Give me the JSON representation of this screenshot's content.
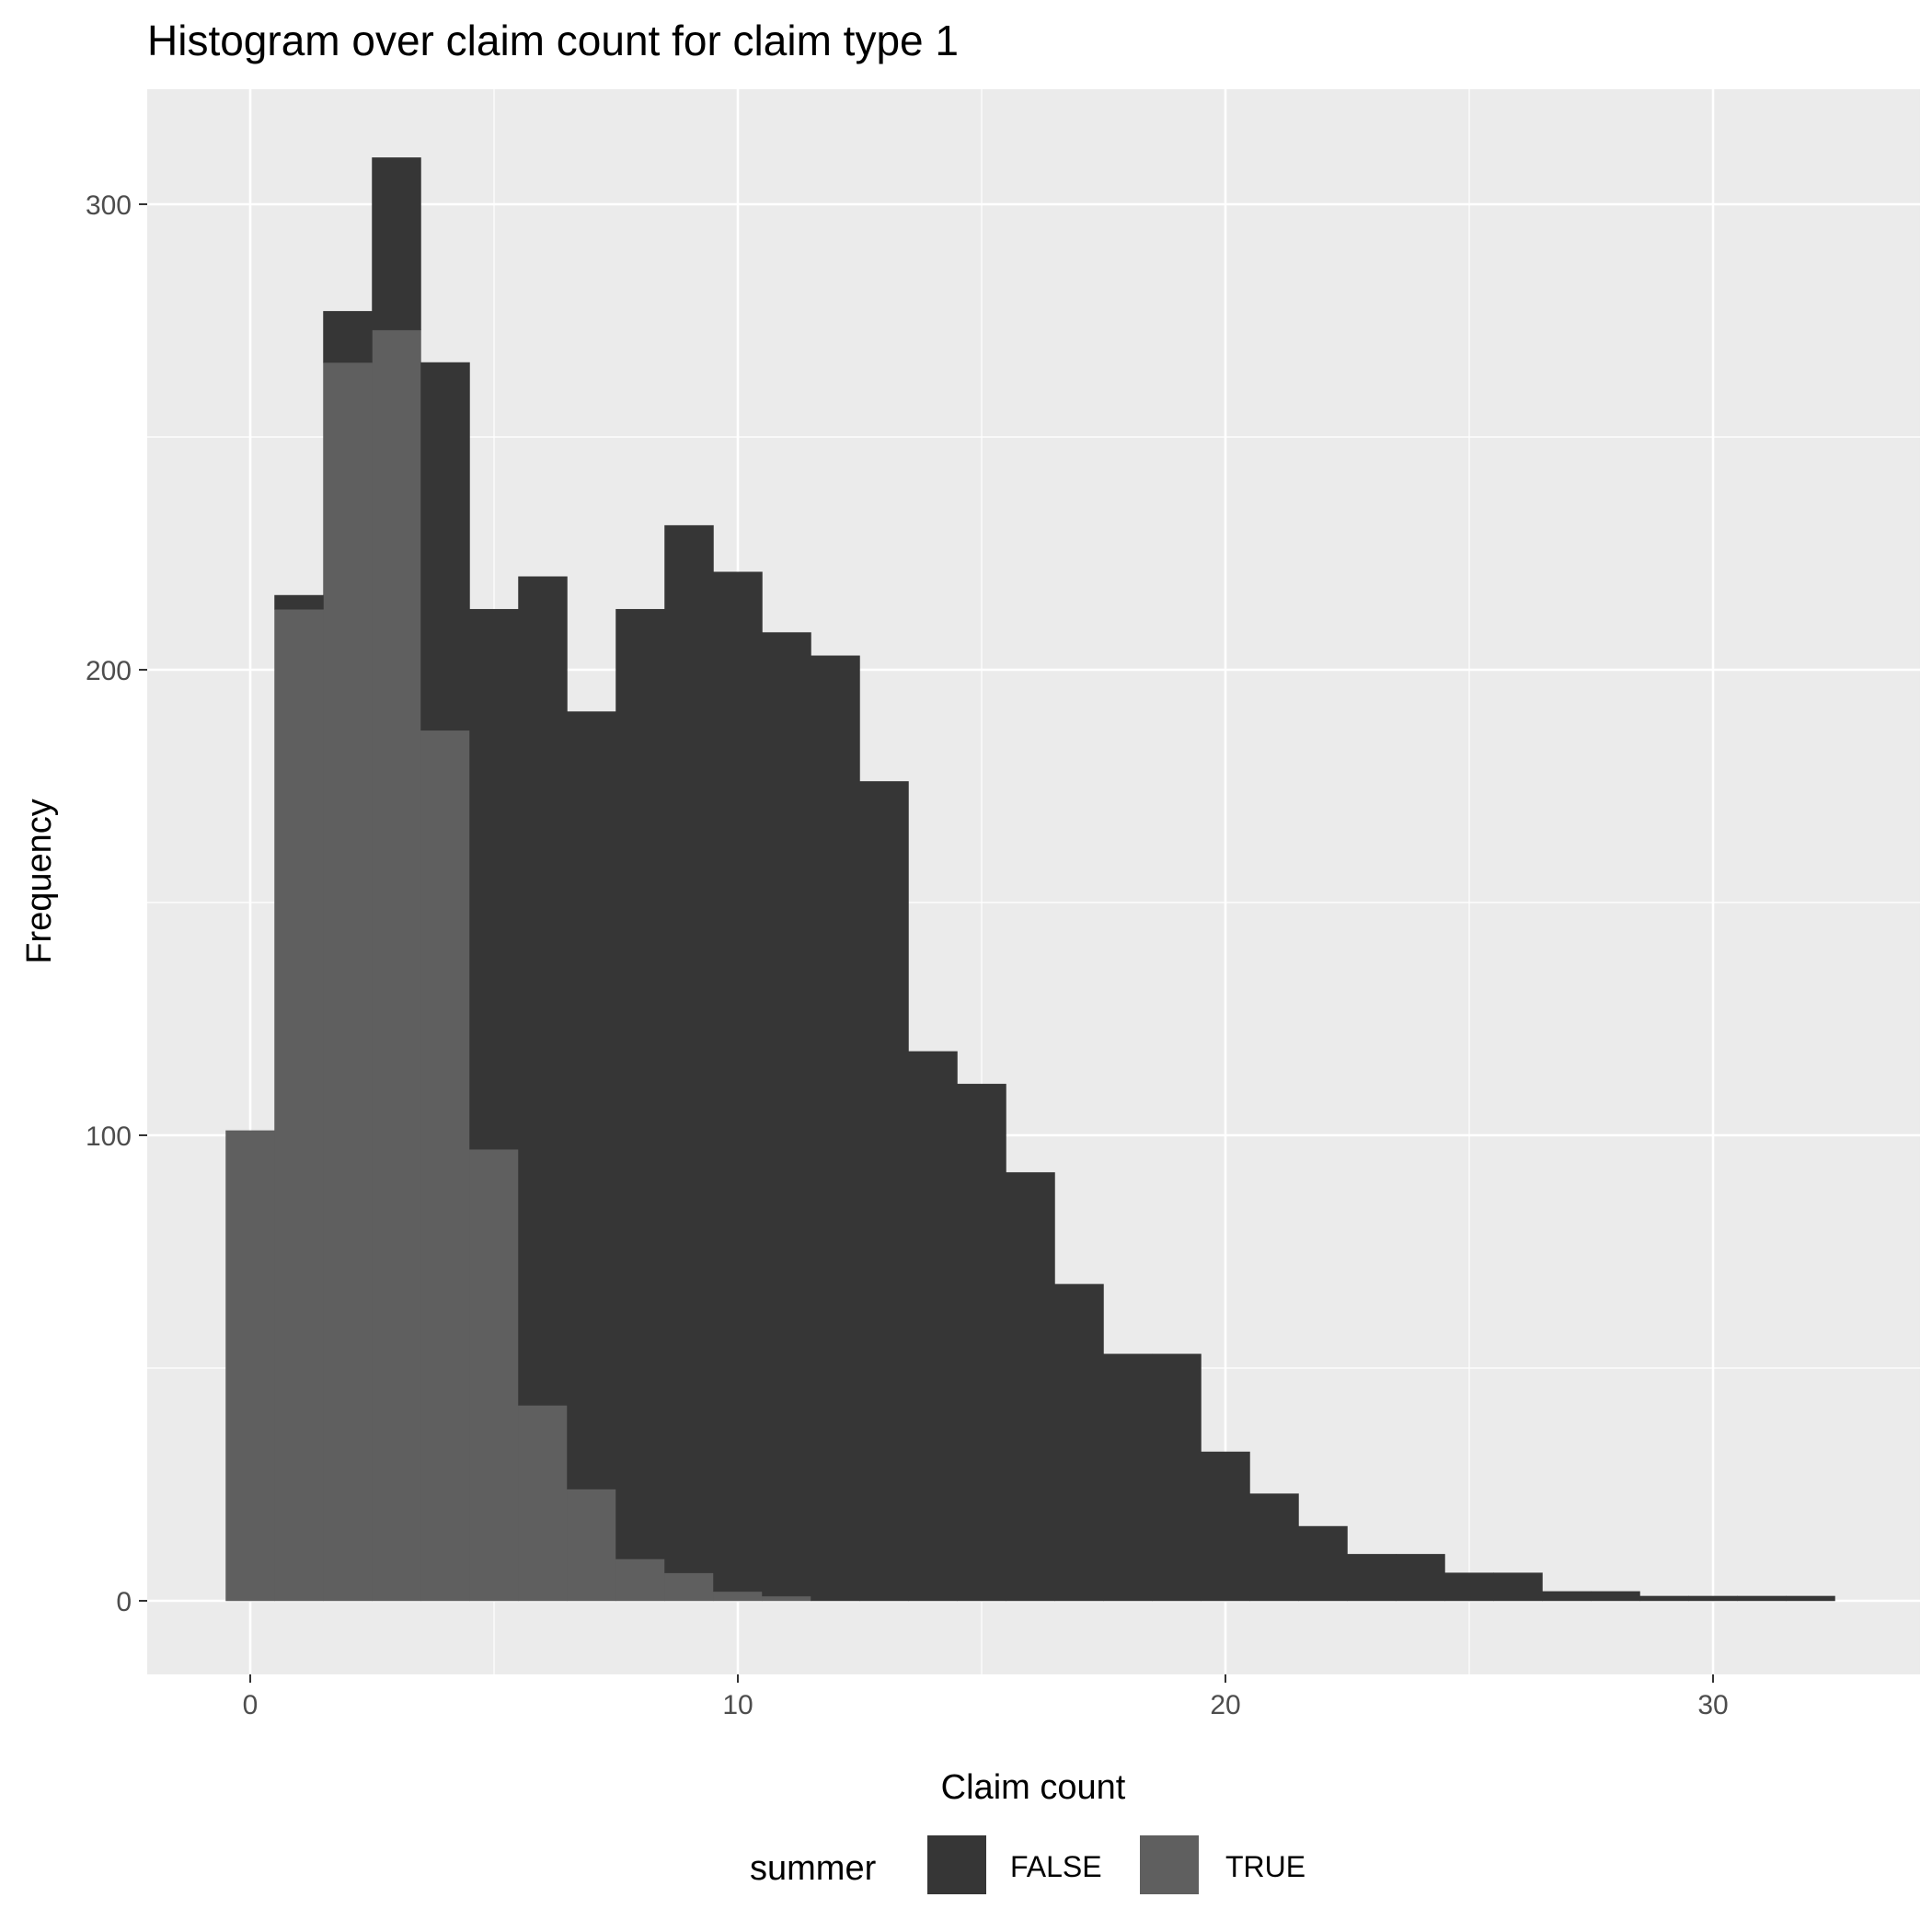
{
  "chart_data": {
    "type": "bar",
    "title": "Histogram over claim count for claim type 1",
    "xlabel": "Claim count",
    "ylabel": "Frequency",
    "xlim": [
      -2.5,
      34.5
    ],
    "ylim": [
      -15.5,
      326
    ],
    "x_ticks": [
      0,
      10,
      20,
      30
    ],
    "y_ticks": [
      0,
      100,
      200,
      300
    ],
    "grid": true,
    "stacked": true,
    "bin_width": 1,
    "bins": [
      0,
      1,
      2,
      3,
      4,
      5,
      6,
      7,
      8,
      9,
      10,
      11,
      12,
      13,
      14,
      15,
      16,
      17,
      18,
      19,
      20,
      21,
      22,
      23,
      24,
      25,
      26,
      27,
      28,
      29,
      30,
      31,
      32
    ],
    "series": [
      {
        "name": "TRUE",
        "color": "#5f5f5f",
        "values": [
          101,
          213,
          266,
          273,
          187,
          97,
          42,
          24,
          9,
          6,
          2,
          1,
          0,
          0,
          0,
          0,
          0,
          0,
          0,
          0,
          0,
          0,
          0,
          0,
          0,
          0,
          0,
          0,
          0,
          0,
          0,
          0,
          0
        ]
      },
      {
        "name": "FALSE",
        "color": "#363636",
        "values": [
          0,
          3,
          11,
          37,
          79,
          116,
          178,
          167,
          204,
          225,
          219,
          207,
          203,
          176,
          118,
          111,
          92,
          68,
          53,
          53,
          32,
          23,
          16,
          10,
          10,
          6,
          6,
          2,
          2,
          1,
          1,
          1,
          1
        ]
      }
    ],
    "legend": {
      "title": "summer",
      "position": "bottom",
      "entries": [
        {
          "label": "FALSE",
          "color": "#363636"
        },
        {
          "label": "TRUE",
          "color": "#5f5f5f"
        }
      ]
    },
    "colors": {
      "panel": "#ebebeb",
      "grid_major": "#ffffff"
    }
  }
}
